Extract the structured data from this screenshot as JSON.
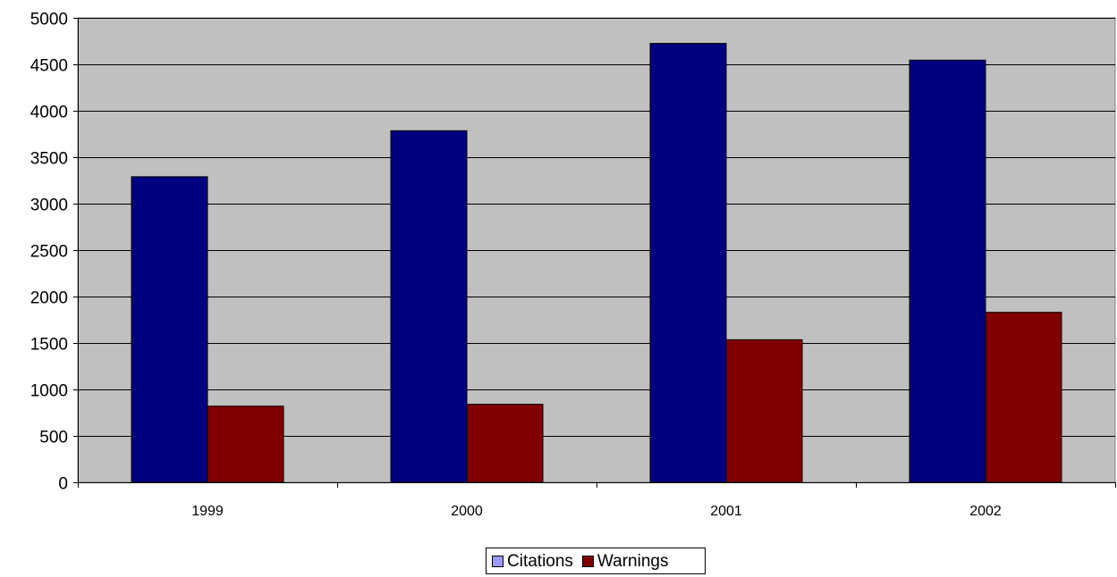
{
  "chart_data": {
    "type": "bar",
    "title": "",
    "xlabel": "",
    "ylabel": "",
    "categories": [
      "1999",
      "2000",
      "2001",
      "2002"
    ],
    "series": [
      {
        "name": "Citations",
        "values": [
          3290,
          3785,
          4725,
          4545
        ],
        "color": "#000080"
      },
      {
        "name": "Warnings",
        "values": [
          820,
          840,
          1535,
          1830
        ],
        "color": "#800000"
      }
    ],
    "ylim": [
      0,
      5000
    ],
    "yticks": [
      0,
      500,
      1000,
      1500,
      2000,
      2500,
      3000,
      3500,
      4000,
      4500,
      5000
    ],
    "grid": true,
    "legend_position": "bottom",
    "plot_background": "#c0c0c0"
  },
  "legend": {
    "items": [
      {
        "label": "Citations",
        "color": "#000080",
        "swatch": "#9999ff"
      },
      {
        "label": "Warnings",
        "color": "#800000",
        "swatch": "#800000"
      }
    ]
  }
}
